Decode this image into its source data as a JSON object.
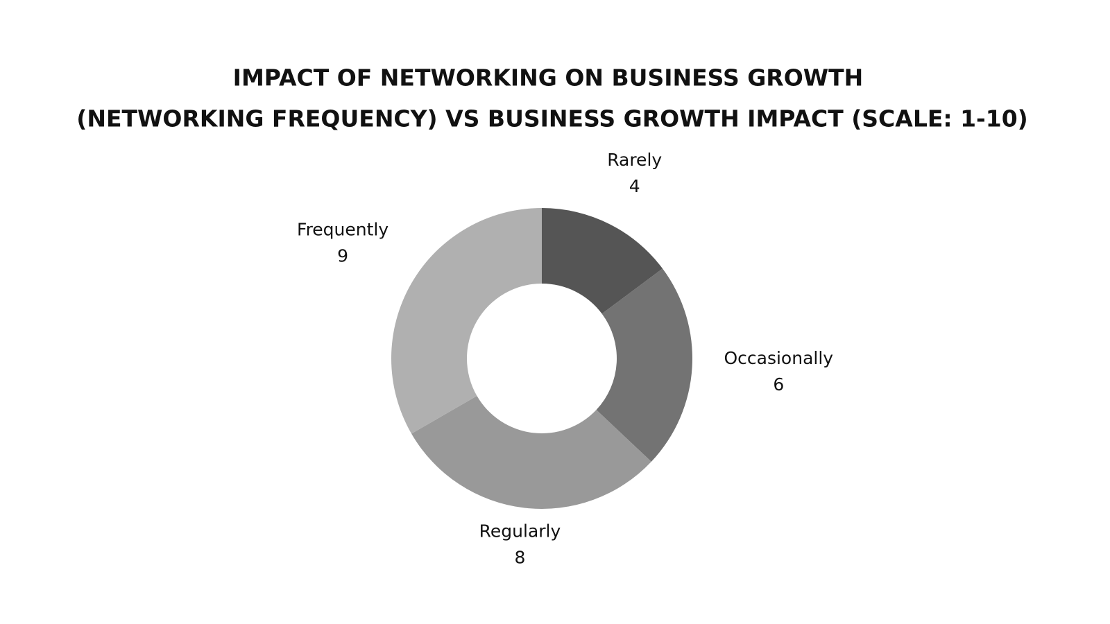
{
  "chart_data": {
    "type": "donut",
    "title": "IMPACT OF NETWORKING ON BUSINESS GROWTH",
    "subtitle": "(NETWORKING FREQUENCY) VS BUSINESS GROWTH IMPACT (SCALE: 1-10)",
    "categories": [
      "Rarely",
      "Occasionally",
      "Regularly",
      "Frequently"
    ],
    "values": [
      4,
      6,
      8,
      9
    ],
    "colors": [
      "#555555",
      "#737373",
      "#999999",
      "#b0b0b0"
    ]
  }
}
